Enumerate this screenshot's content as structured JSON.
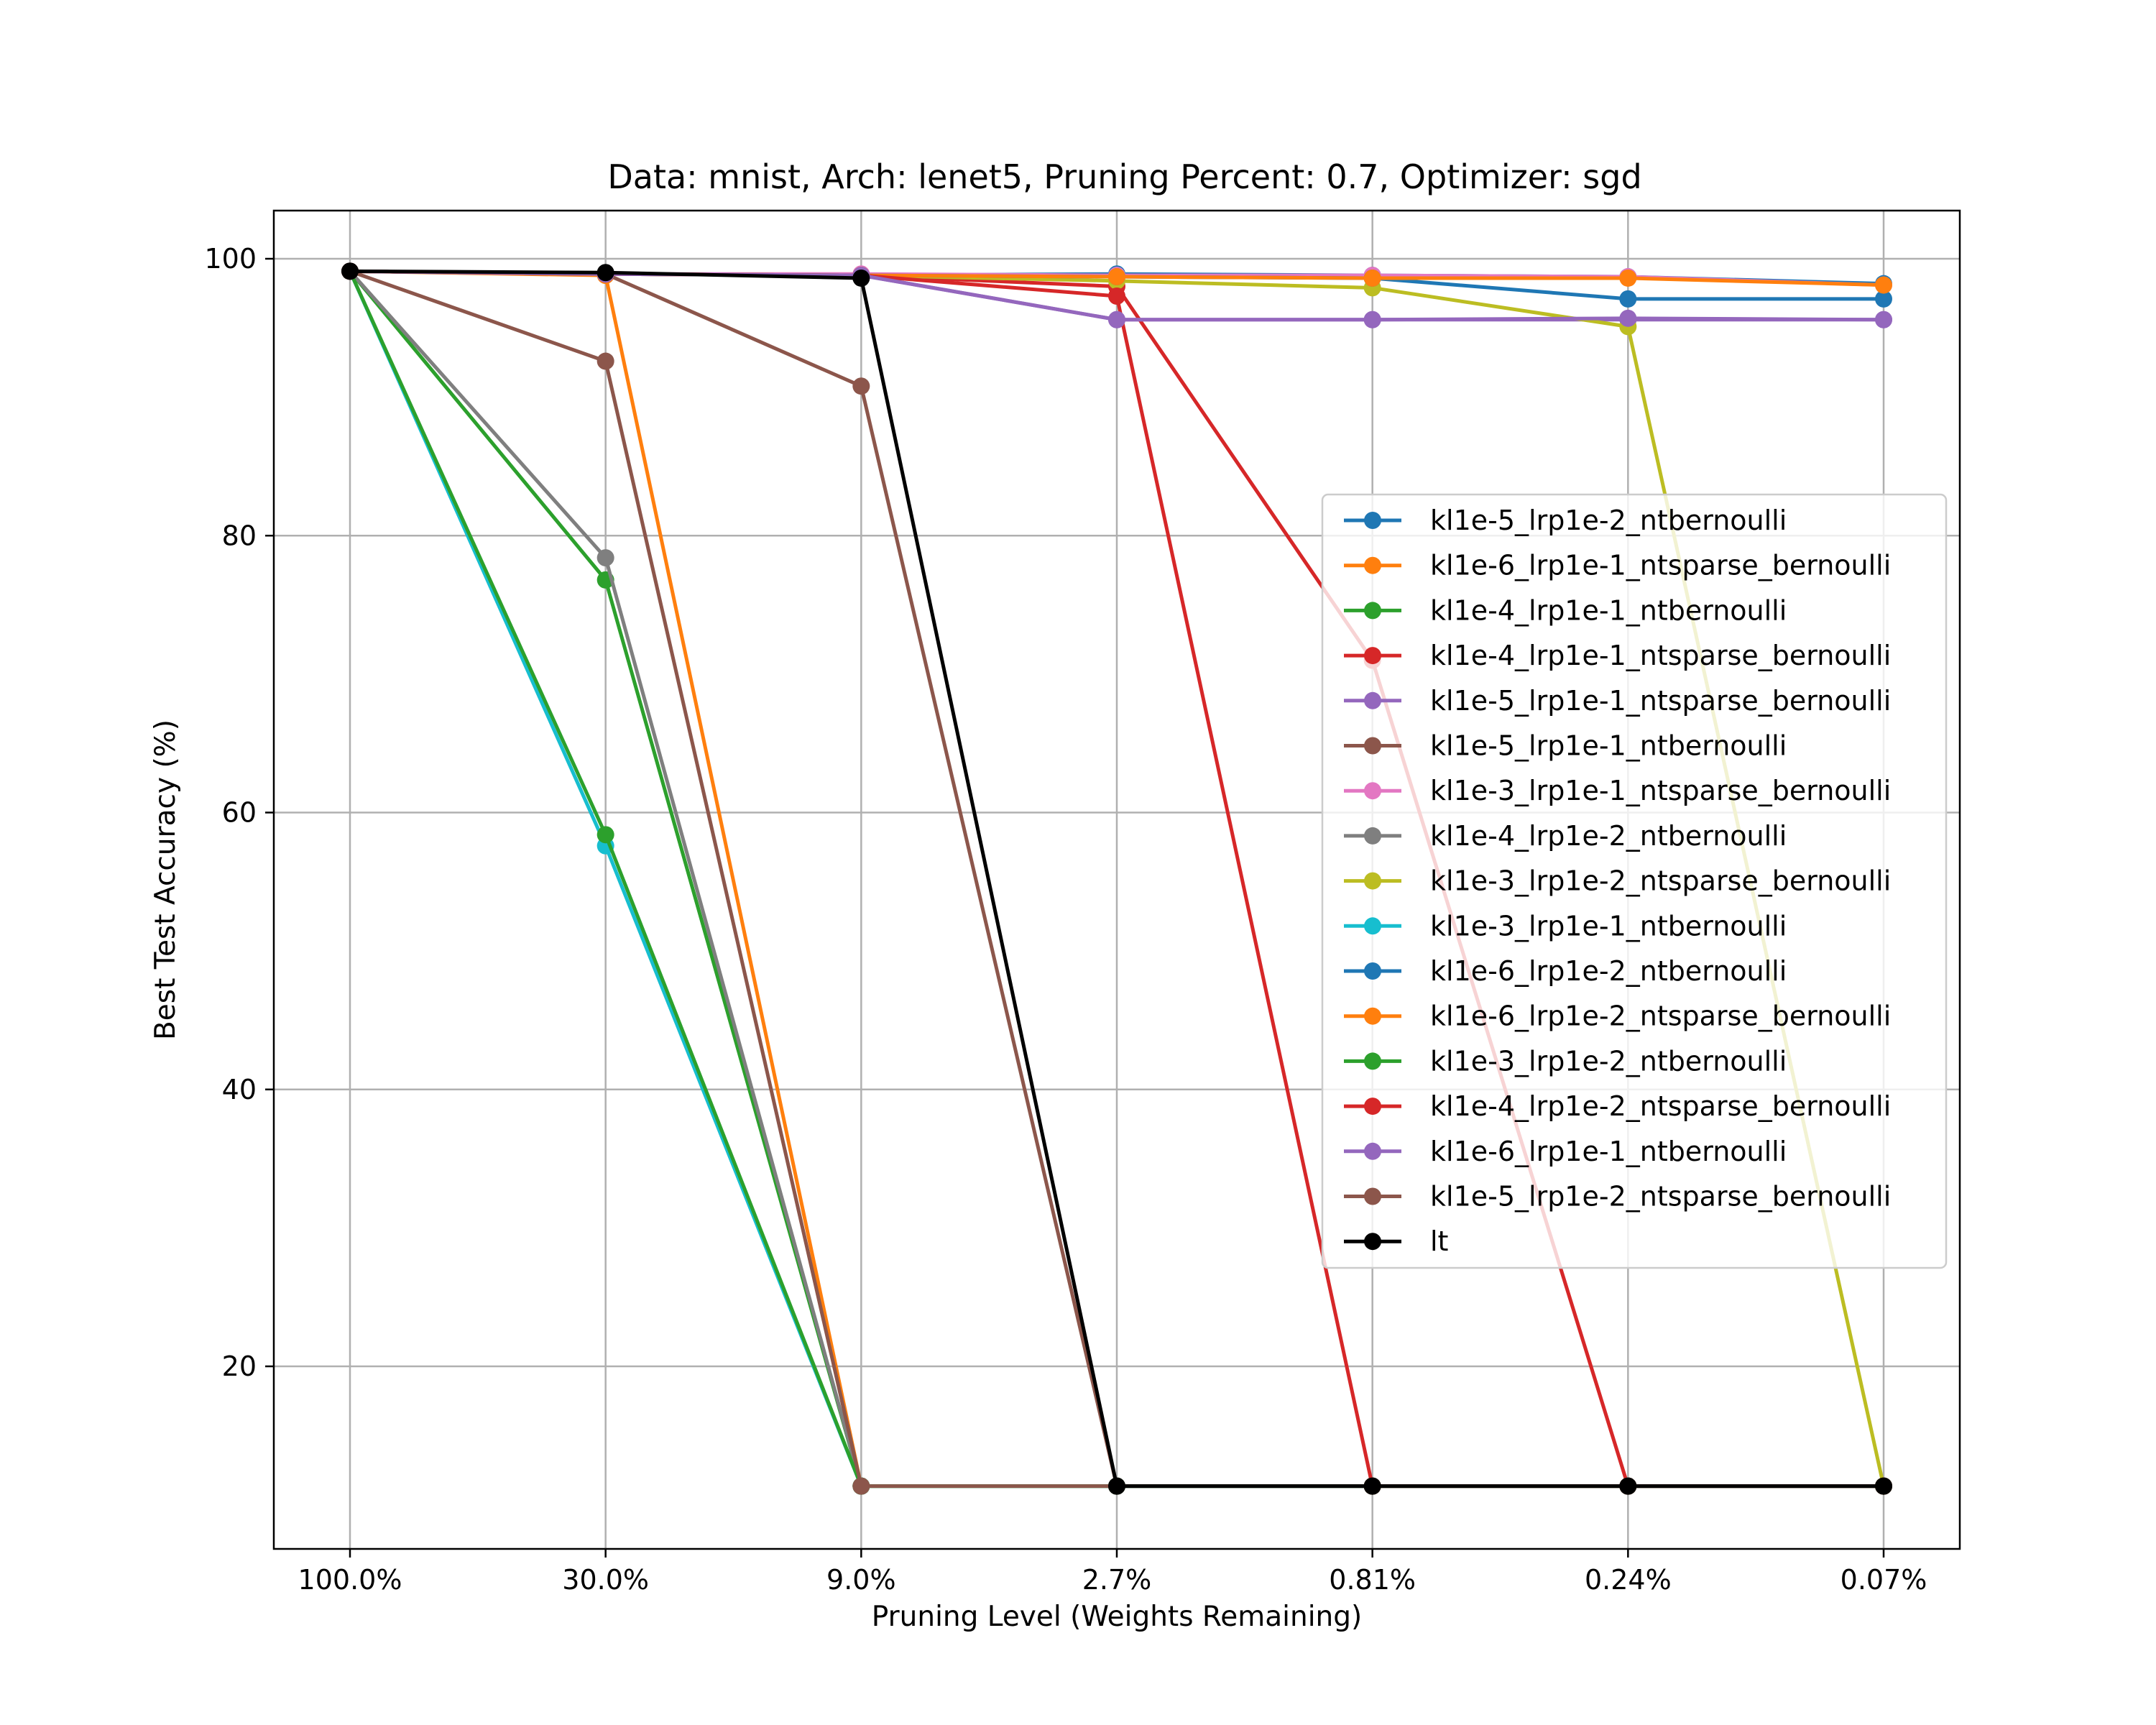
{
  "chart_data": {
    "type": "line",
    "title": "Data: mnist, Arch: lenet5, Pruning Percent: 0.7, Optimizer: sgd",
    "xlabel": "Pruning Level (Weights Remaining)",
    "ylabel": "Best Test Accuracy (%)",
    "categories": [
      "100.0%",
      "30.0%",
      "9.0%",
      "2.7%",
      "0.81%",
      "0.24%",
      "0.07%"
    ],
    "yticks": [
      20,
      40,
      60,
      80,
      100
    ],
    "ylim": [
      6.5,
      103.5
    ],
    "grid": true,
    "legend_position": "center-right",
    "series": [
      {
        "name": "kl1e-5_lrp1e-2_ntbernoulli",
        "color": "#1f77b4",
        "values": [
          99.1,
          98.9,
          98.8,
          98.9,
          98.8,
          98.7,
          98.2
        ]
      },
      {
        "name": "kl1e-6_lrp1e-1_ntsparse_bernoulli",
        "color": "#ff7f0e",
        "values": [
          99.1,
          98.8,
          11.35,
          11.35,
          11.35,
          11.35,
          11.35
        ]
      },
      {
        "name": "kl1e-4_lrp1e-1_ntbernoulli",
        "color": "#2ca02c",
        "values": [
          99.1,
          76.8,
          11.35,
          11.35,
          11.35,
          11.35,
          11.35
        ]
      },
      {
        "name": "kl1e-4_lrp1e-1_ntsparse_bernoulli",
        "color": "#d62728",
        "values": [
          99.1,
          98.9,
          98.8,
          98.0,
          71.0,
          11.35,
          11.35
        ]
      },
      {
        "name": "kl1e-5_lrp1e-1_ntsparse_bernoulli",
        "color": "#9467bd",
        "values": [
          99.1,
          98.9,
          98.8,
          95.6,
          95.6,
          95.6,
          95.6
        ]
      },
      {
        "name": "kl1e-5_lrp1e-1_ntbernoulli",
        "color": "#8c564b",
        "values": [
          99.1,
          98.9,
          90.8,
          11.35,
          11.35,
          11.35,
          11.35
        ]
      },
      {
        "name": "kl1e-3_lrp1e-1_ntsparse_bernoulli",
        "color": "#e377c2",
        "values": [
          99.1,
          98.9,
          98.9,
          98.8,
          98.8,
          98.7,
          98.1
        ]
      },
      {
        "name": "kl1e-4_lrp1e-2_ntbernoulli",
        "color": "#7f7f7f",
        "values": [
          99.1,
          78.4,
          11.35,
          11.35,
          11.35,
          11.35,
          11.35
        ]
      },
      {
        "name": "kl1e-3_lrp1e-2_ntsparse_bernoulli",
        "color": "#bcbd22",
        "values": [
          99.1,
          98.9,
          98.8,
          98.4,
          97.9,
          95.1,
          11.35
        ]
      },
      {
        "name": "kl1e-3_lrp1e-1_ntbernoulli",
        "color": "#17becf",
        "values": [
          99.1,
          57.6,
          11.35,
          11.35,
          11.35,
          11.35,
          11.35
        ]
      },
      {
        "name": "kl1e-6_lrp1e-2_ntbernoulli",
        "color": "#1f77b4",
        "values": [
          99.1,
          98.9,
          98.8,
          98.7,
          98.6,
          97.1,
          97.1
        ]
      },
      {
        "name": "kl1e-6_lrp1e-2_ntsparse_bernoulli",
        "color": "#ff7f0e",
        "values": [
          99.1,
          98.9,
          98.8,
          98.7,
          98.6,
          98.6,
          98.1
        ]
      },
      {
        "name": "kl1e-3_lrp1e-2_ntbernoulli",
        "color": "#2ca02c",
        "values": [
          99.1,
          58.4,
          11.35,
          11.35,
          11.35,
          11.35,
          11.35
        ]
      },
      {
        "name": "kl1e-4_lrp1e-2_ntsparse_bernoulli",
        "color": "#d62728",
        "values": [
          99.1,
          98.9,
          98.8,
          97.3,
          11.35,
          11.35,
          11.35
        ]
      },
      {
        "name": "kl1e-6_lrp1e-1_ntbernoulli",
        "color": "#9467bd",
        "values": [
          99.1,
          98.9,
          98.8,
          95.6,
          95.6,
          95.7,
          95.6
        ]
      },
      {
        "name": "kl1e-5_lrp1e-2_ntsparse_bernoulli",
        "color": "#8c564b",
        "values": [
          99.1,
          92.6,
          11.35,
          11.35,
          11.35,
          11.35,
          11.35
        ]
      },
      {
        "name": "lt",
        "color": "#000000",
        "values": [
          99.1,
          99.0,
          98.6,
          11.35,
          11.35,
          11.35,
          11.35
        ]
      }
    ]
  }
}
